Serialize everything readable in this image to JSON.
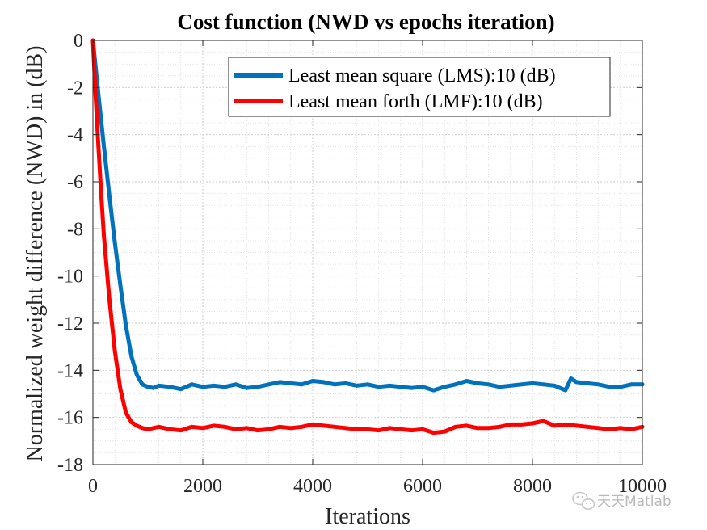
{
  "chart_data": {
    "type": "line",
    "title": "Cost function (NWD vs epochs iteration)",
    "xlabel": "Iterations",
    "ylabel": "Normalized weight difference (NWD) in (dB)",
    "xlim": [
      0,
      10000
    ],
    "ylim": [
      -18,
      0
    ],
    "xticks": [
      0,
      2000,
      4000,
      6000,
      8000,
      10000
    ],
    "xtick_labels": [
      "0",
      "2000",
      "4000",
      "6000",
      "8000",
      "10000"
    ],
    "yticks": [
      0,
      -2,
      -4,
      -6,
      -8,
      -10,
      -12,
      -14,
      -16,
      -18
    ],
    "ytick_labels": [
      "0",
      "-2",
      "-4",
      "-6",
      "-8",
      "-10",
      "-12",
      "-14",
      "-16",
      "-18"
    ],
    "grid": true,
    "minor_grid": true,
    "legend_position": "top-right",
    "series": [
      {
        "name": "Least mean square (LMS):10 (dB)",
        "color": "#0072bd",
        "x": [
          0,
          100,
          200,
          300,
          400,
          500,
          600,
          700,
          800,
          900,
          1000,
          1100,
          1200,
          1400,
          1600,
          1800,
          2000,
          2200,
          2400,
          2600,
          2800,
          3000,
          3200,
          3400,
          3600,
          3800,
          4000,
          4200,
          4400,
          4600,
          4800,
          5000,
          5200,
          5400,
          5600,
          5800,
          6000,
          6200,
          6400,
          6600,
          6800,
          7000,
          7200,
          7400,
          7600,
          7800,
          8000,
          8200,
          8400,
          8600,
          8700,
          8800,
          9000,
          9200,
          9400,
          9600,
          9800,
          10000
        ],
        "y": [
          0,
          -2.3,
          -4.5,
          -6.6,
          -8.6,
          -10.4,
          -12.1,
          -13.4,
          -14.2,
          -14.6,
          -14.7,
          -14.75,
          -14.65,
          -14.7,
          -14.8,
          -14.6,
          -14.7,
          -14.65,
          -14.7,
          -14.6,
          -14.75,
          -14.7,
          -14.6,
          -14.5,
          -14.55,
          -14.6,
          -14.45,
          -14.5,
          -14.6,
          -14.55,
          -14.65,
          -14.6,
          -14.7,
          -14.65,
          -14.7,
          -14.75,
          -14.7,
          -14.85,
          -14.7,
          -14.6,
          -14.45,
          -14.55,
          -14.6,
          -14.7,
          -14.65,
          -14.6,
          -14.55,
          -14.6,
          -14.65,
          -14.85,
          -14.35,
          -14.5,
          -14.55,
          -14.6,
          -14.7,
          -14.7,
          -14.6,
          -14.6
        ]
      },
      {
        "name": "Least mean forth (LMF):10 (dB)",
        "color": "#ff0000",
        "x": [
          0,
          50,
          100,
          150,
          200,
          300,
          400,
          500,
          600,
          700,
          800,
          900,
          1000,
          1200,
          1400,
          1600,
          1800,
          2000,
          2200,
          2400,
          2600,
          2800,
          3000,
          3200,
          3400,
          3600,
          3800,
          4000,
          4200,
          4400,
          4600,
          4800,
          5000,
          5200,
          5400,
          5600,
          5800,
          6000,
          6200,
          6400,
          6600,
          6800,
          7000,
          7200,
          7400,
          7600,
          7800,
          8000,
          8200,
          8400,
          8600,
          8800,
          9000,
          9200,
          9400,
          9600,
          9800,
          10000
        ],
        "y": [
          0,
          -2.4,
          -4.5,
          -6.5,
          -8.3,
          -11.0,
          -13.2,
          -14.8,
          -15.8,
          -16.2,
          -16.35,
          -16.45,
          -16.5,
          -16.4,
          -16.5,
          -16.55,
          -16.4,
          -16.45,
          -16.35,
          -16.4,
          -16.5,
          -16.45,
          -16.55,
          -16.5,
          -16.4,
          -16.45,
          -16.4,
          -16.3,
          -16.35,
          -16.4,
          -16.45,
          -16.5,
          -16.5,
          -16.55,
          -16.45,
          -16.5,
          -16.55,
          -16.5,
          -16.65,
          -16.6,
          -16.4,
          -16.35,
          -16.45,
          -16.45,
          -16.4,
          -16.3,
          -16.3,
          -16.25,
          -16.15,
          -16.35,
          -16.3,
          -16.35,
          -16.4,
          -16.45,
          -16.5,
          -16.45,
          -16.5,
          -16.4
        ]
      }
    ]
  },
  "watermark": {
    "text": "天天Matlab",
    "icon": "wechat-icon"
  }
}
